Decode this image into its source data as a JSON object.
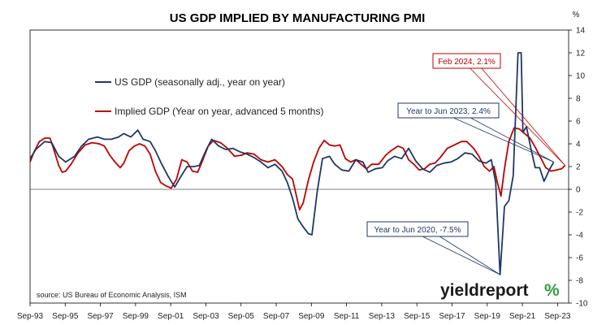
{
  "chart_data": {
    "type": "line",
    "title": "US GDP IMPLIED BY MANUFACTURING PMI",
    "y_unit": "%",
    "ylim": [
      -10,
      14
    ],
    "y_ticks": [
      14,
      12,
      10,
      8,
      6,
      4,
      2,
      0,
      -2,
      -4,
      -6,
      -8,
      -10
    ],
    "x_ticks": [
      "Sep-93",
      "Sep-95",
      "Sep-97",
      "Sep-99",
      "Sep-01",
      "Sep-03",
      "Sep-05",
      "Sep-07",
      "Sep-09",
      "Sep-11",
      "Sep-13",
      "Sep-15",
      "Sep-17",
      "Sep-19",
      "Sep-21",
      "Sep-23"
    ],
    "x_tick_values": [
      1993.67,
      1995.67,
      1997.67,
      1999.67,
      2001.67,
      2003.67,
      2005.67,
      2007.67,
      2009.67,
      2011.67,
      2013.67,
      2015.67,
      2017.67,
      2019.67,
      2021.67,
      2023.67
    ],
    "xlim": [
      1993.67,
      2024.3
    ],
    "grid": false,
    "legend_position": "upper-left",
    "series": [
      {
        "name": "US GDP (seasonally adj., year on year)",
        "color": "#1f3864",
        "points": [
          [
            1993.67,
            2.7
          ],
          [
            1994.0,
            3.5
          ],
          [
            1994.5,
            4.2
          ],
          [
            1994.9,
            4.1
          ],
          [
            1995.3,
            2.9
          ],
          [
            1995.7,
            2.4
          ],
          [
            1996.2,
            2.9
          ],
          [
            1996.6,
            3.8
          ],
          [
            1997.0,
            4.4
          ],
          [
            1997.5,
            4.6
          ],
          [
            1997.9,
            4.4
          ],
          [
            1998.3,
            4.4
          ],
          [
            1998.7,
            4.6
          ],
          [
            1999.0,
            4.9
          ],
          [
            1999.4,
            4.6
          ],
          [
            1999.8,
            5.2
          ],
          [
            2000.1,
            4.4
          ],
          [
            2000.5,
            4.2
          ],
          [
            2000.8,
            3.4
          ],
          [
            2001.1,
            2.4
          ],
          [
            2001.5,
            1.2
          ],
          [
            2001.9,
            0.2
          ],
          [
            2002.2,
            1.0
          ],
          [
            2002.6,
            2.0
          ],
          [
            2003.0,
            2.0
          ],
          [
            2003.3,
            2.1
          ],
          [
            2003.7,
            3.5
          ],
          [
            2004.0,
            4.4
          ],
          [
            2004.4,
            3.8
          ],
          [
            2004.8,
            3.5
          ],
          [
            2005.2,
            3.6
          ],
          [
            2005.6,
            3.3
          ],
          [
            2006.0,
            3.1
          ],
          [
            2006.4,
            2.8
          ],
          [
            2006.8,
            2.4
          ],
          [
            2007.2,
            1.9
          ],
          [
            2007.6,
            2.2
          ],
          [
            2008.0,
            1.6
          ],
          [
            2008.3,
            0.6
          ],
          [
            2008.6,
            -0.8
          ],
          [
            2008.9,
            -2.6
          ],
          [
            2009.2,
            -3.3
          ],
          [
            2009.5,
            -3.9
          ],
          [
            2009.7,
            -4.0
          ],
          [
            2010.0,
            -0.2
          ],
          [
            2010.3,
            2.7
          ],
          [
            2010.7,
            2.9
          ],
          [
            2011.0,
            2.2
          ],
          [
            2011.4,
            1.7
          ],
          [
            2011.8,
            1.6
          ],
          [
            2012.2,
            2.6
          ],
          [
            2012.6,
            2.4
          ],
          [
            2012.9,
            1.5
          ],
          [
            2013.3,
            1.8
          ],
          [
            2013.7,
            1.9
          ],
          [
            2014.0,
            2.5
          ],
          [
            2014.4,
            2.9
          ],
          [
            2014.8,
            2.7
          ],
          [
            2015.2,
            3.6
          ],
          [
            2015.6,
            2.5
          ],
          [
            2016.0,
            1.8
          ],
          [
            2016.4,
            1.5
          ],
          [
            2016.8,
            2.1
          ],
          [
            2017.2,
            2.3
          ],
          [
            2017.6,
            2.4
          ],
          [
            2018.0,
            2.7
          ],
          [
            2018.4,
            3.2
          ],
          [
            2018.8,
            3.1
          ],
          [
            2019.2,
            2.5
          ],
          [
            2019.6,
            2.3
          ],
          [
            2019.9,
            2.6
          ],
          [
            2020.15,
            0.6
          ],
          [
            2020.4,
            -7.5
          ],
          [
            2020.65,
            -1.5
          ],
          [
            2020.9,
            -1.0
          ],
          [
            2021.15,
            1.2
          ],
          [
            2021.42,
            12.0
          ],
          [
            2021.6,
            12.0
          ],
          [
            2021.7,
            5.0
          ],
          [
            2021.9,
            5.5
          ],
          [
            2022.15,
            3.6
          ],
          [
            2022.4,
            1.9
          ],
          [
            2022.65,
            1.9
          ],
          [
            2022.9,
            0.7
          ],
          [
            2023.2,
            1.7
          ],
          [
            2023.45,
            2.4
          ]
        ]
      },
      {
        "name": "Implied GDP (Year on year, advanced 5 months)",
        "color": "#c00000",
        "points": [
          [
            1993.67,
            2.4
          ],
          [
            1993.9,
            3.3
          ],
          [
            1994.2,
            4.2
          ],
          [
            1994.5,
            4.5
          ],
          [
            1994.8,
            4.5
          ],
          [
            1995.0,
            3.6
          ],
          [
            1995.3,
            2.1
          ],
          [
            1995.5,
            1.5
          ],
          [
            1995.7,
            1.6
          ],
          [
            1996.0,
            2.2
          ],
          [
            1996.4,
            3.2
          ],
          [
            1996.8,
            3.9
          ],
          [
            1997.2,
            4.1
          ],
          [
            1997.6,
            4.0
          ],
          [
            1997.9,
            3.8
          ],
          [
            1998.2,
            3.0
          ],
          [
            1998.5,
            2.4
          ],
          [
            1998.8,
            1.9
          ],
          [
            1999.0,
            2.3
          ],
          [
            1999.3,
            3.4
          ],
          [
            1999.6,
            3.8
          ],
          [
            1999.9,
            4.0
          ],
          [
            2000.2,
            3.8
          ],
          [
            2000.5,
            3.1
          ],
          [
            2000.8,
            1.6
          ],
          [
            2001.1,
            0.6
          ],
          [
            2001.4,
            0.3
          ],
          [
            2001.7,
            0.1
          ],
          [
            2002.0,
            0.9
          ],
          [
            2002.3,
            2.6
          ],
          [
            2002.6,
            2.4
          ],
          [
            2002.9,
            1.6
          ],
          [
            2003.2,
            1.5
          ],
          [
            2003.5,
            2.6
          ],
          [
            2003.8,
            3.8
          ],
          [
            2004.1,
            4.3
          ],
          [
            2004.5,
            4.1
          ],
          [
            2004.9,
            3.6
          ],
          [
            2005.3,
            2.9
          ],
          [
            2005.7,
            3.0
          ],
          [
            2006.0,
            3.2
          ],
          [
            2006.4,
            3.1
          ],
          [
            2006.8,
            2.6
          ],
          [
            2007.2,
            2.4
          ],
          [
            2007.6,
            2.6
          ],
          [
            2008.0,
            2.0
          ],
          [
            2008.3,
            1.3
          ],
          [
            2008.6,
            0.9
          ],
          [
            2008.85,
            -0.8
          ],
          [
            2009.0,
            -1.8
          ],
          [
            2009.2,
            -1.2
          ],
          [
            2009.5,
            0.8
          ],
          [
            2009.8,
            2.4
          ],
          [
            2010.1,
            3.6
          ],
          [
            2010.4,
            4.3
          ],
          [
            2010.7,
            3.9
          ],
          [
            2011.0,
            3.8
          ],
          [
            2011.3,
            3.9
          ],
          [
            2011.6,
            2.7
          ],
          [
            2011.9,
            2.4
          ],
          [
            2012.2,
            2.6
          ],
          [
            2012.5,
            2.2
          ],
          [
            2012.8,
            1.8
          ],
          [
            2013.1,
            2.2
          ],
          [
            2013.5,
            2.2
          ],
          [
            2013.9,
            3.0
          ],
          [
            2014.2,
            3.4
          ],
          [
            2014.6,
            3.8
          ],
          [
            2014.9,
            3.6
          ],
          [
            2015.2,
            2.6
          ],
          [
            2015.5,
            2.2
          ],
          [
            2015.8,
            1.7
          ],
          [
            2016.1,
            1.8
          ],
          [
            2016.4,
            2.2
          ],
          [
            2016.7,
            2.3
          ],
          [
            2017.0,
            2.8
          ],
          [
            2017.4,
            3.6
          ],
          [
            2017.8,
            3.9
          ],
          [
            2018.2,
            4.2
          ],
          [
            2018.5,
            4.2
          ],
          [
            2018.9,
            3.6
          ],
          [
            2019.2,
            2.9
          ],
          [
            2019.5,
            2.0
          ],
          [
            2019.8,
            1.6
          ],
          [
            2020.05,
            2.0
          ],
          [
            2020.25,
            0.6
          ],
          [
            2020.45,
            -0.6
          ],
          [
            2020.65,
            1.8
          ],
          [
            2020.9,
            4.2
          ],
          [
            2021.2,
            5.4
          ],
          [
            2021.5,
            5.3
          ],
          [
            2021.8,
            4.9
          ],
          [
            2022.1,
            4.5
          ],
          [
            2022.4,
            3.7
          ],
          [
            2022.7,
            2.8
          ],
          [
            2023.0,
            1.9
          ],
          [
            2023.3,
            1.6
          ],
          [
            2023.6,
            1.7
          ],
          [
            2023.9,
            1.8
          ],
          [
            2024.1,
            2.1
          ]
        ]
      }
    ],
    "annotations": [
      {
        "text": "Feb 2024, 2.1%",
        "color": "#c00000",
        "target": [
          2024.1,
          2.1
        ]
      },
      {
        "text": "Year to Jun 2023, 2.4%",
        "color": "#1f3864",
        "target": [
          2023.45,
          2.4
        ]
      },
      {
        "text": "Year to Jun 2020, -7.5%",
        "color": "#1f3864",
        "target": [
          2020.4,
          -7.5
        ]
      }
    ]
  },
  "source": "source: US Bureau of Economic Analysis, ISM",
  "logo": {
    "word": "yieldreport",
    "symbol": "%"
  }
}
